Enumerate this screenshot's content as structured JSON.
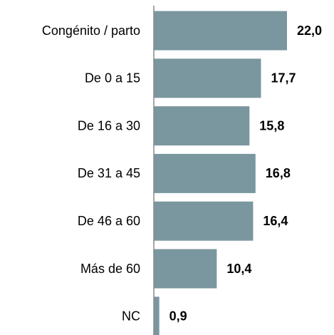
{
  "chart_data": {
    "type": "barh",
    "categories": [
      "Congénito / parto",
      "De 0 a 15",
      "De 16 a 30",
      "De 31 a 45",
      "De 46 a 60",
      "Más de 60",
      "NC"
    ],
    "values": [
      22.0,
      17.7,
      15.8,
      16.8,
      16.4,
      10.4,
      0.9
    ],
    "value_labels": [
      "22,0",
      "17,7",
      "15,8",
      "16,8",
      "16,4",
      "10,4",
      "0,9"
    ],
    "color": "#7a979f"
  }
}
